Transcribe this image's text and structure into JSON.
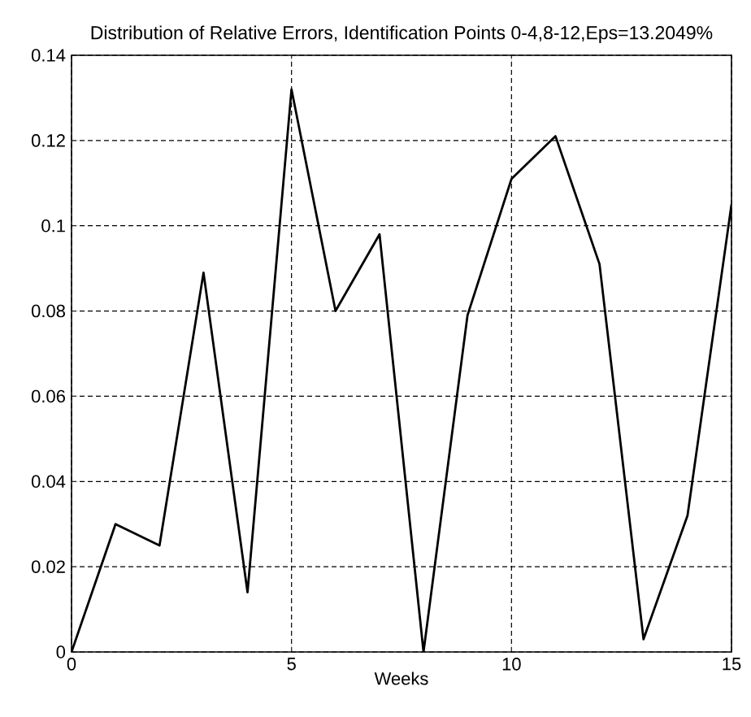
{
  "chart_data": {
    "type": "line",
    "title": "Distribution of Relative Errors, Identification Points 0-4,8-12,Eps=13.2049%",
    "xlabel": "Weeks",
    "x": [
      0,
      1,
      2,
      3,
      4,
      5,
      6,
      7,
      8,
      9,
      10,
      11,
      12,
      13,
      14,
      15
    ],
    "values": [
      0,
      0.03,
      0.025,
      0.089,
      0.014,
      0.132,
      0.08,
      0.098,
      0,
      0.079,
      0.111,
      0.121,
      0.091,
      0.003,
      0.032,
      0.105
    ],
    "color": "#000000",
    "xlim": [
      0,
      15
    ],
    "ylim": [
      0,
      0.14
    ],
    "xticks": [
      0,
      5,
      10,
      15
    ],
    "yticks": [
      0,
      0.02,
      0.04,
      0.06,
      0.08,
      0.1,
      0.12,
      0.14
    ],
    "grid": true,
    "line_style": "solid",
    "marker": "none"
  }
}
